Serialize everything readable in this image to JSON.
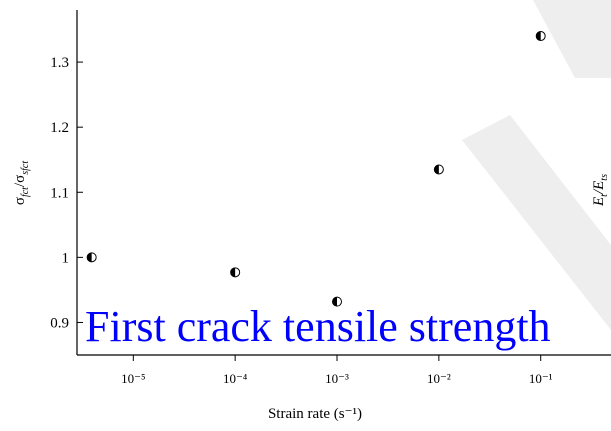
{
  "chart_data": {
    "type": "scatter",
    "title": "First crack tensile strength",
    "xlabel": "Strain rate (s⁻¹)",
    "ylabel": [
      "σ",
      "fct",
      "/σ",
      "sfct"
    ],
    "y2label": [
      "E",
      "t",
      "/E",
      "ts"
    ],
    "x": [
      3.9e-06,
      0.0001,
      0.001,
      0.01,
      0.1
    ],
    "series": [
      {
        "color": "#000000",
        "values": [
          1.0,
          0.977,
          0.932,
          1.135,
          1.34
        ]
      }
    ],
    "xscale": "log",
    "xlim": [
      2.8e-06,
      0.49
    ],
    "xticks": [
      {
        "value": 1e-05,
        "label": "10⁻⁵"
      },
      {
        "value": 0.0001,
        "label": "10⁻⁴"
      },
      {
        "value": 0.001,
        "label": "10⁻³"
      },
      {
        "value": 0.01,
        "label": "10⁻²"
      },
      {
        "value": 0.1,
        "label": "10⁻¹"
      }
    ],
    "ylim": [
      0.85,
      1.38
    ],
    "yticks": [
      0.9,
      1.0,
      1.1,
      1.2,
      1.3
    ],
    "title_color": "#0000ff"
  }
}
